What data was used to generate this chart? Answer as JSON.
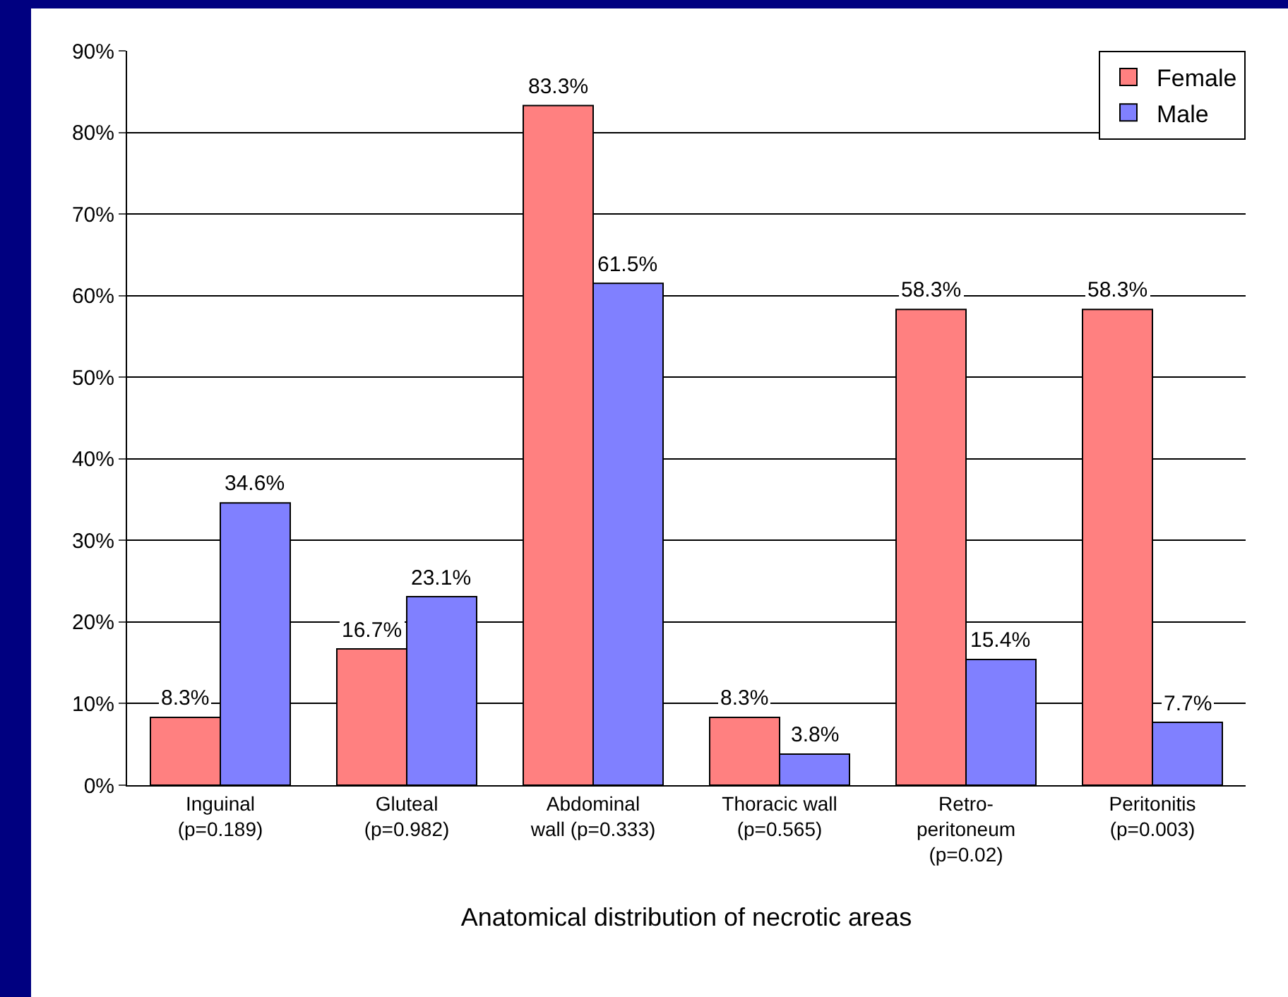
{
  "chart_data": {
    "type": "bar",
    "xlabel": "Anatomical distribution of necrotic areas",
    "categories": [
      "Inguinal\n(p=0.189)",
      "Gluteal\n(p=0.982)",
      "Abdominal\nwall (p=0.333)",
      "Thoracic wall\n(p=0.565)",
      "Retro-\nperitoneum\n(p=0.02)",
      "Peritonitis\n(p=0.003)"
    ],
    "series": [
      {
        "name": "Female",
        "color": "#ff8080",
        "values": [
          8.3,
          16.7,
          83.3,
          8.3,
          58.3,
          58.3
        ],
        "value_labels": [
          "8.3%",
          "16.7%",
          "83.3%",
          "8.3%",
          "58.3%",
          "58.3%"
        ]
      },
      {
        "name": "Male",
        "color": "#8080ff",
        "values": [
          34.6,
          23.1,
          61.5,
          3.8,
          15.4,
          7.7
        ],
        "value_labels": [
          "34.6%",
          "23.1%",
          "61.5%",
          "3.8%",
          "15.4%",
          "7.7%"
        ]
      }
    ],
    "ylim": [
      0,
      90
    ],
    "yticks": [
      {
        "value": 0,
        "label": "0%"
      },
      {
        "value": 10,
        "label": "10%"
      },
      {
        "value": 20,
        "label": "20%"
      },
      {
        "value": 30,
        "label": "30%"
      },
      {
        "value": 40,
        "label": "40%"
      },
      {
        "value": 50,
        "label": "50%"
      },
      {
        "value": 60,
        "label": "60%"
      },
      {
        "value": 70,
        "label": "70%"
      },
      {
        "value": 80,
        "label": "80%"
      },
      {
        "value": 90,
        "label": "90%"
      }
    ],
    "grid": "y",
    "legend": "top right"
  }
}
